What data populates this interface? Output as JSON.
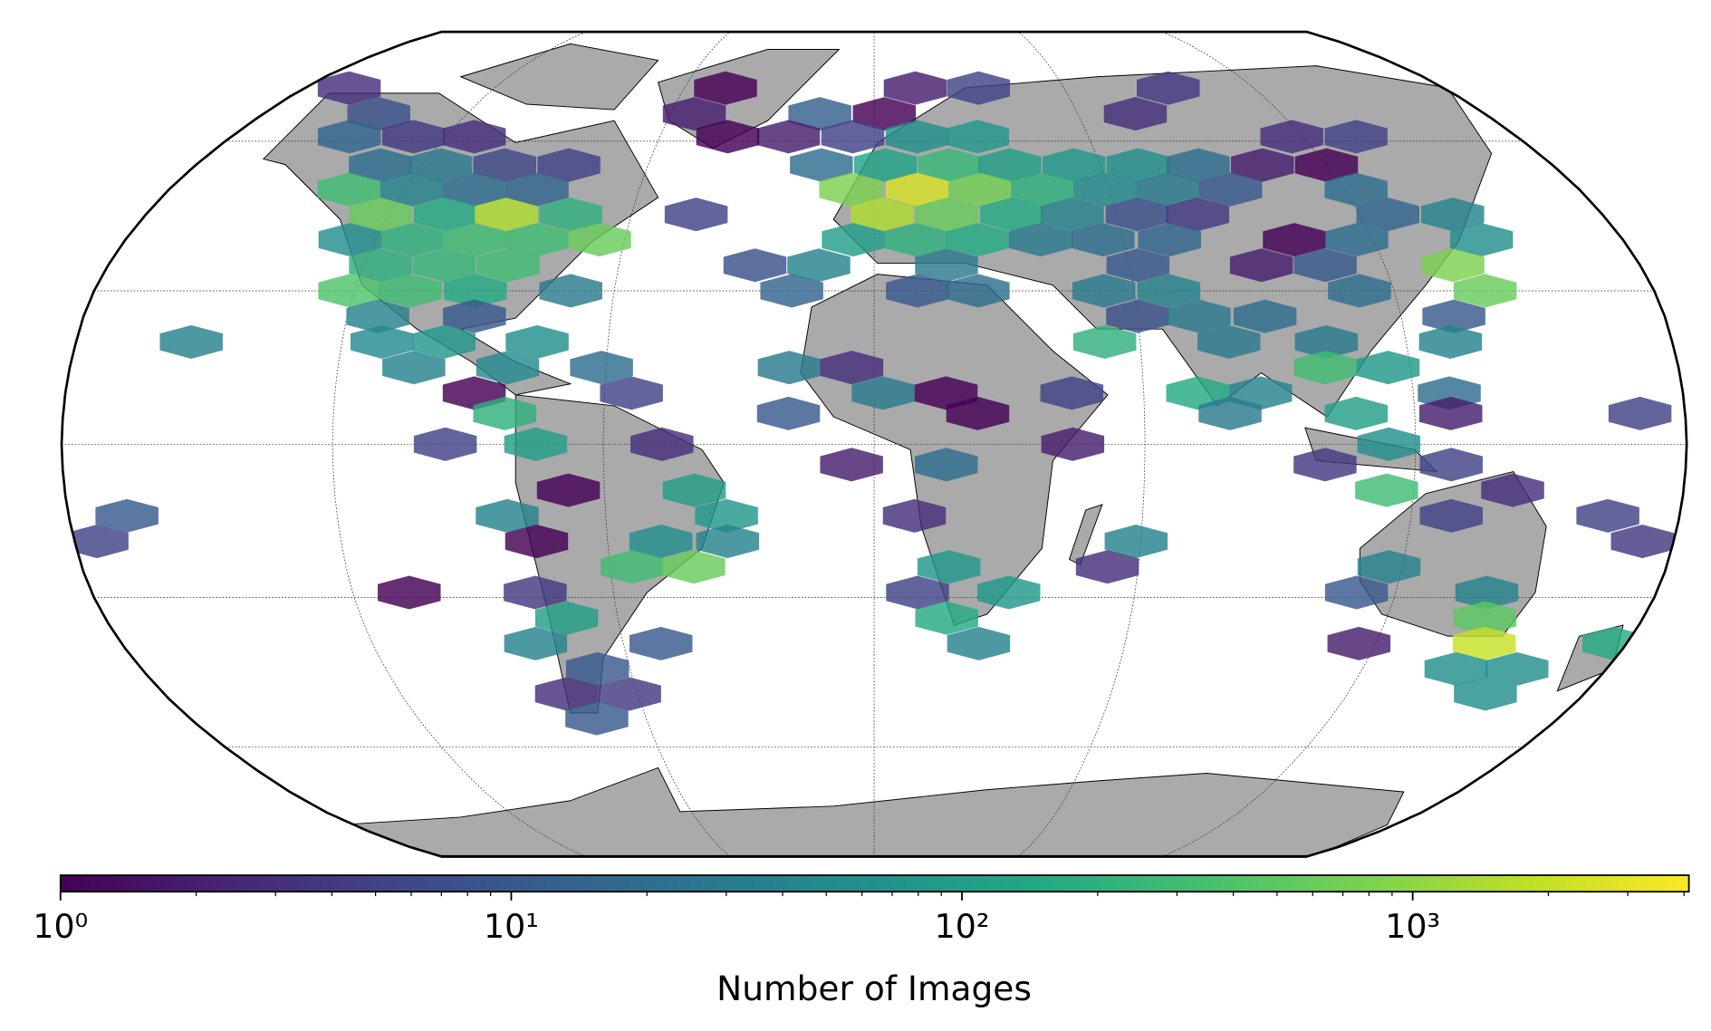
{
  "chart_data": {
    "type": "hexbin",
    "projection": "robinson",
    "colorscale": "log",
    "cmap": "viridis",
    "colorbar_label": "Number of Images",
    "clim": [
      1,
      4100
    ],
    "cbar_ticks": [
      {
        "value": 1,
        "label": "10⁰"
      },
      {
        "value": 10,
        "label": "10¹"
      },
      {
        "value": 100,
        "label": "10²"
      },
      {
        "value": 1000,
        "label": "10³"
      }
    ],
    "cbar_minor_ticks": [
      2,
      3,
      4,
      5,
      6,
      7,
      8,
      9,
      20,
      30,
      40,
      50,
      60,
      70,
      80,
      90,
      200,
      300,
      400,
      500,
      600,
      700,
      800,
      900,
      2000,
      3000,
      4000
    ],
    "hexbins": {
      "lon": [
        -166,
        -47,
        13,
        33,
        93,
        -146,
        -53,
        3,
        -16,
        77,
        -129,
        -112,
        -147,
        -24,
        -41,
        -6,
        12,
        29,
        117,
        135,
        -131,
        -115,
        -98,
        -81,
        -14,
        3,
        20,
        36,
        53,
        70,
        103,
        120,
        86,
        -134,
        -118,
        -102,
        -86,
        -6,
        11,
        27,
        43,
        59,
        75,
        91,
        123,
        -122,
        -106,
        -91,
        -75,
        -44,
        2,
        18,
        34,
        49,
        65,
        80,
        127,
        143,
        -126,
        -111,
        -96,
        -81,
        -66,
        -5,
        10,
        25,
        40,
        55,
        71,
        101,
        116,
        146,
        -116,
        -101,
        -86,
        -28,
        -13,
        17,
        62,
        91,
        106,
        136,
        -121,
        -107,
        -92,
        -70,
        -19,
        10,
        24,
        53,
        68,
        112,
        141,
        -113,
        -91,
        60,
        74,
        89,
        132,
        -154,
        -111,
        -97,
        -76,
        52,
        80,
        102,
        130,
        -103,
        -82,
        -61,
        -19,
        -5,
        101,
        115,
        -54,
        2,
        16,
        44,
        72,
        86,
        128,
        -89,
        -82,
        -19,
        23,
        79,
        107,
        128,
        170,
        -95,
        -75,
        -47,
        44,
        114,
        -5,
        16,
        100,
        128,
        -68,
        -40,
        114,
        142,
        -167,
        -82,
        -33,
        9,
        129,
        164,
        -175,
        -76,
        -48,
        -33,
        59,
        173,
        -55,
        -41,
        17,
        53,
        117,
        -107,
        -78,
        10,
        31,
        111,
        141,
        -72,
        17,
        143,
        -81,
        -51,
        25,
        116,
        146,
        177,
        -68,
        143,
        158,
        -78,
        -62,
        155,
        -73
      ],
      "lat": [
        72,
        72,
        72,
        72,
        72,
        66,
        66,
        66,
        66,
        66,
        61,
        61,
        61,
        61,
        61,
        61,
        61,
        61,
        61,
        61,
        55,
        55,
        55,
        55,
        55,
        55,
        55,
        55,
        55,
        55,
        55,
        55,
        55,
        50,
        50,
        50,
        50,
        50,
        50,
        50,
        50,
        50,
        50,
        50,
        50,
        45,
        45,
        45,
        45,
        45,
        45,
        45,
        45,
        45,
        45,
        45,
        45,
        45,
        40,
        40,
        40,
        40,
        40,
        40,
        40,
        40,
        40,
        40,
        40,
        40,
        40,
        40,
        35,
        35,
        35,
        35,
        35,
        35,
        35,
        35,
        35,
        35,
        30,
        30,
        30,
        30,
        30,
        30,
        30,
        30,
        30,
        30,
        30,
        25,
        25,
        25,
        25,
        25,
        25,
        20,
        20,
        20,
        20,
        20,
        20,
        20,
        20,
        15,
        15,
        15,
        15,
        15,
        15,
        15,
        10,
        10,
        10,
        10,
        10,
        10,
        10,
        10,
        6,
        6,
        6,
        6,
        6,
        6,
        6,
        0,
        0,
        0,
        0,
        0,
        -4,
        -4,
        -4,
        -4,
        -9,
        -9,
        -9,
        -9,
        -14,
        -14,
        -14,
        -14,
        -14,
        -14,
        -19,
        -19,
        -19,
        -19,
        -19,
        -19,
        -24,
        -24,
        -24,
        -24,
        -24,
        -29,
        -29,
        -29,
        -29,
        -29,
        -29,
        -34,
        -34,
        -34,
        -39,
        -39,
        -39,
        -39,
        -39,
        -39,
        -44,
        -44,
        -44,
        -49,
        -49,
        -49,
        -54
      ],
      "values": [
        3,
        1,
        2,
        5,
        4,
        8,
        2,
        1,
        12,
        3,
        4,
        3,
        15,
        2,
        1,
        5,
        60,
        80,
        3,
        5,
        20,
        30,
        6,
        5,
        20,
        120,
        250,
        100,
        80,
        60,
        2,
        1,
        20,
        300,
        40,
        20,
        15,
        800,
        2500,
        700,
        200,
        50,
        30,
        10,
        20,
        600,
        150,
        1500,
        200,
        5,
        1500,
        600,
        150,
        40,
        8,
        4,
        15,
        40,
        60,
        200,
        300,
        300,
        600,
        100,
        200,
        150,
        30,
        20,
        15,
        1,
        20,
        60,
        200,
        250,
        300,
        8,
        40,
        30,
        10,
        2,
        10,
        800,
        400,
        300,
        150,
        30,
        15,
        10,
        20,
        30,
        40,
        20,
        600,
        40,
        10,
        8,
        30,
        20,
        10,
        40,
        50,
        80,
        60,
        200,
        30,
        30,
        40,
        40,
        50,
        20,
        30,
        3,
        300,
        80,
        5,
        30,
        1,
        5,
        150,
        40,
        20,
        1,
        200,
        10,
        1,
        30,
        100,
        2,
        5,
        5,
        100,
        3,
        2,
        60,
        2,
        20,
        4,
        5,
        1,
        100,
        300,
        3,
        10,
        40,
        80,
        3,
        5,
        5,
        5,
        1,
        60,
        40,
        40,
        4,
        300,
        600,
        80,
        3,
        40,
        1,
        4,
        5,
        80,
        10,
        40,
        100,
        150,
        500,
        40,
        10,
        40,
        2,
        2000,
        150,
        10,
        60,
        60,
        3,
        4,
        60,
        10
      ]
    }
  }
}
